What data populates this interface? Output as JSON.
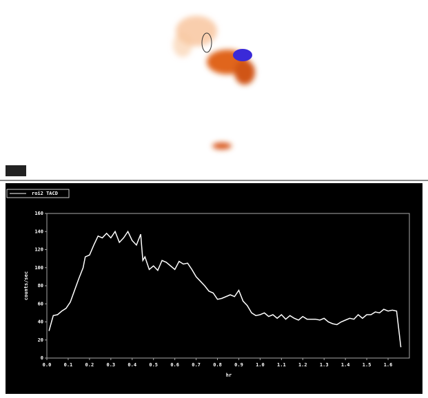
{
  "chart_data": {
    "type": "line",
    "legend_label": "roi2 TACD",
    "xlabel": "hr",
    "ylabel": "counts/sec",
    "x": [
      0.01,
      0.03,
      0.05,
      0.07,
      0.09,
      0.11,
      0.13,
      0.15,
      0.17,
      0.18,
      0.2,
      0.22,
      0.24,
      0.26,
      0.28,
      0.3,
      0.32,
      0.34,
      0.36,
      0.38,
      0.4,
      0.42,
      0.44,
      0.45,
      0.46,
      0.48,
      0.5,
      0.52,
      0.54,
      0.56,
      0.58,
      0.6,
      0.62,
      0.64,
      0.66,
      0.68,
      0.7,
      0.72,
      0.74,
      0.76,
      0.78,
      0.8,
      0.82,
      0.84,
      0.86,
      0.88,
      0.9,
      0.92,
      0.94,
      0.96,
      0.98,
      1.0,
      1.02,
      1.04,
      1.06,
      1.08,
      1.1,
      1.12,
      1.14,
      1.16,
      1.18,
      1.2,
      1.22,
      1.24,
      1.26,
      1.28,
      1.3,
      1.32,
      1.34,
      1.36,
      1.38,
      1.4,
      1.42,
      1.44,
      1.46,
      1.48,
      1.5,
      1.52,
      1.54,
      1.56,
      1.58,
      1.6,
      1.62,
      1.64,
      1.66
    ],
    "series": [
      {
        "name": "roi2 TACD",
        "color": "#ffffff",
        "values": [
          30,
          47,
          48,
          52,
          55,
          62,
          75,
          88,
          100,
          112,
          114,
          125,
          135,
          133,
          138,
          133,
          140,
          128,
          133,
          140,
          130,
          125,
          137,
          108,
          112,
          98,
          102,
          97,
          108,
          106,
          102,
          98,
          107,
          104,
          105,
          98,
          90,
          85,
          80,
          74,
          72,
          65,
          66,
          68,
          70,
          68,
          75,
          63,
          58,
          50,
          47,
          48,
          50,
          46,
          48,
          44,
          48,
          43,
          47,
          44,
          42,
          46,
          43,
          43,
          43,
          42,
          44,
          40,
          38,
          37,
          40,
          42,
          44,
          43,
          48,
          44,
          48,
          48,
          51,
          50,
          54,
          52,
          53,
          52,
          12
        ]
      }
    ],
    "xlim": [
      0,
      1.7
    ],
    "ylim": [
      0,
      160
    ],
    "xticks": [
      {
        "value": 0,
        "label": "0.0"
      },
      0.1,
      0.2,
      0.3,
      0.4,
      0.5,
      0.6,
      0.7,
      0.8,
      0.9,
      {
        "value": 1,
        "label": "1.0"
      },
      1.1,
      1.2,
      1.3,
      1.4,
      1.5,
      1.6
    ],
    "yticks": [
      0,
      20,
      40,
      60,
      80,
      100,
      120,
      140,
      160
    ]
  }
}
